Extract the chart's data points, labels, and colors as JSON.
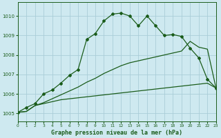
{
  "title": "Graphe pression niveau de la mer (hPa)",
  "background_color": "#cee9f0",
  "grid_color": "#aacdd8",
  "line_color": "#1a5c1a",
  "xlim": [
    0,
    23
  ],
  "ylim": [
    1004.6,
    1010.7
  ],
  "yticks": [
    1005,
    1006,
    1007,
    1008,
    1009,
    1010
  ],
  "xticks": [
    0,
    1,
    2,
    3,
    4,
    5,
    6,
    7,
    8,
    9,
    10,
    11,
    12,
    13,
    14,
    15,
    16,
    17,
    18,
    19,
    20,
    21,
    22,
    23
  ],
  "series1_x": [
    0,
    1,
    2,
    3,
    4,
    5,
    6,
    7,
    8,
    9,
    10,
    11,
    12,
    13,
    14,
    15,
    16,
    17,
    18,
    19,
    20,
    21,
    22,
    23
  ],
  "series1_y": [
    1005.05,
    1005.1,
    1005.4,
    1005.5,
    1005.6,
    1005.7,
    1005.75,
    1005.8,
    1005.85,
    1005.9,
    1005.95,
    1006.0,
    1006.05,
    1006.1,
    1006.15,
    1006.2,
    1006.25,
    1006.3,
    1006.35,
    1006.4,
    1006.45,
    1006.5,
    1006.55,
    1006.3
  ],
  "series2_x": [
    0,
    1,
    2,
    3,
    4,
    5,
    6,
    7,
    8,
    9,
    10,
    11,
    12,
    13,
    14,
    15,
    16,
    17,
    18,
    19,
    20,
    21,
    22,
    23
  ],
  "series2_y": [
    1005.05,
    1005.1,
    1005.4,
    1005.55,
    1005.75,
    1005.95,
    1006.15,
    1006.35,
    1006.6,
    1006.8,
    1007.05,
    1007.25,
    1007.45,
    1007.6,
    1007.7,
    1007.8,
    1007.9,
    1008.0,
    1008.1,
    1008.2,
    1008.7,
    1008.4,
    1008.3,
    1006.3
  ],
  "series3_x": [
    0,
    1,
    2,
    3,
    4,
    5,
    6,
    7,
    8,
    9,
    10,
    11,
    12,
    13,
    14,
    15,
    16,
    17,
    18,
    19,
    20,
    21,
    22,
    23
  ],
  "series3_y": [
    1005.05,
    1005.3,
    1005.5,
    1006.0,
    1006.2,
    1006.55,
    1006.95,
    1007.25,
    1008.8,
    1009.1,
    1009.75,
    1010.1,
    1010.15,
    1010.0,
    1009.5,
    1010.0,
    1009.5,
    1009.0,
    1009.05,
    1008.95,
    1008.35,
    1007.85,
    1006.75,
    1006.3
  ],
  "figsize": [
    3.2,
    2.0
  ],
  "dpi": 100
}
